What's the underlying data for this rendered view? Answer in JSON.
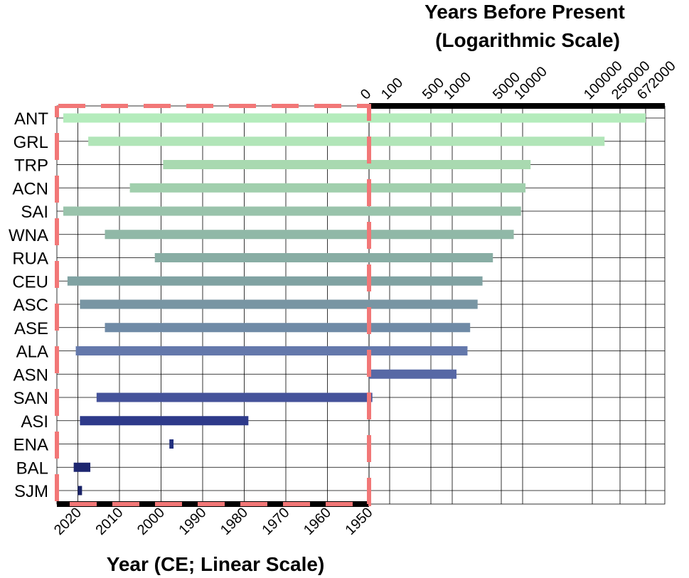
{
  "chart_data": {
    "type": "bar",
    "title": "",
    "top_axis": {
      "title_line1": "Years Before Present",
      "title_line2": "(Logarithmic Scale)",
      "scale": "log",
      "ticks": [
        0,
        100,
        500,
        1000,
        5000,
        10000,
        100000,
        250000,
        672000
      ]
    },
    "bottom_axis": {
      "title": "Year (CE; Linear Scale)",
      "scale": "linear",
      "ticks": [
        2020,
        2010,
        2000,
        1990,
        1980,
        1970,
        1960,
        1950
      ]
    },
    "grid": true,
    "categories": [
      "ANT",
      "GRL",
      "TRP",
      "ACN",
      "SAI",
      "WNA",
      "RUA",
      "CEU",
      "ASC",
      "ASE",
      "ALA",
      "ASN",
      "SAN",
      "ASI",
      "ENA",
      "BAL",
      "SJM"
    ],
    "colors": [
      "#b4ecbc",
      "#b1e5b8",
      "#a9d9b0",
      "#a1cfad",
      "#99c3ab",
      "#90b8a7",
      "#88ada4",
      "#80a2a2",
      "#7895a3",
      "#6f8aa6",
      "#6478ab",
      "#5768a5",
      "#44529a",
      "#2e3a8a",
      "#22307e",
      "#1d2670",
      "#1a2368"
    ],
    "ranges": [
      {
        "ce_end": 2023.5,
        "bp_max": 672000
      },
      {
        "ce_end": 2017.5,
        "bp_max": 150000
      },
      {
        "ce_end": 1999.5,
        "bp_max": 13000
      },
      {
        "ce_end": 2007.5,
        "bp_max": 11000
      },
      {
        "ce_end": 2023.5,
        "bp_max": 9500
      },
      {
        "ce_end": 2013.5,
        "bp_max": 7500
      },
      {
        "ce_end": 2001.5,
        "bp_max": 3800
      },
      {
        "ce_end": 2022.5,
        "bp_max": 2700
      },
      {
        "ce_end": 2019.5,
        "bp_max": 2300
      },
      {
        "ce_end": 2013.5,
        "bp_max": 1800
      },
      {
        "ce_end": 2020.5,
        "bp_max": 1650
      },
      {
        "ce_start": 1950,
        "ce_end": 1950,
        "bp_max": 1150
      },
      {
        "ce_end": 2015.5,
        "bp_max": 16
      },
      {
        "ce_start": 1979,
        "ce_end": 2019.5
      },
      {
        "ce_start": 1997,
        "ce_end": 1998
      },
      {
        "ce_start": 2017,
        "ce_end": 2021
      },
      {
        "ce_start": 2019,
        "ce_end": 2020
      }
    ]
  }
}
